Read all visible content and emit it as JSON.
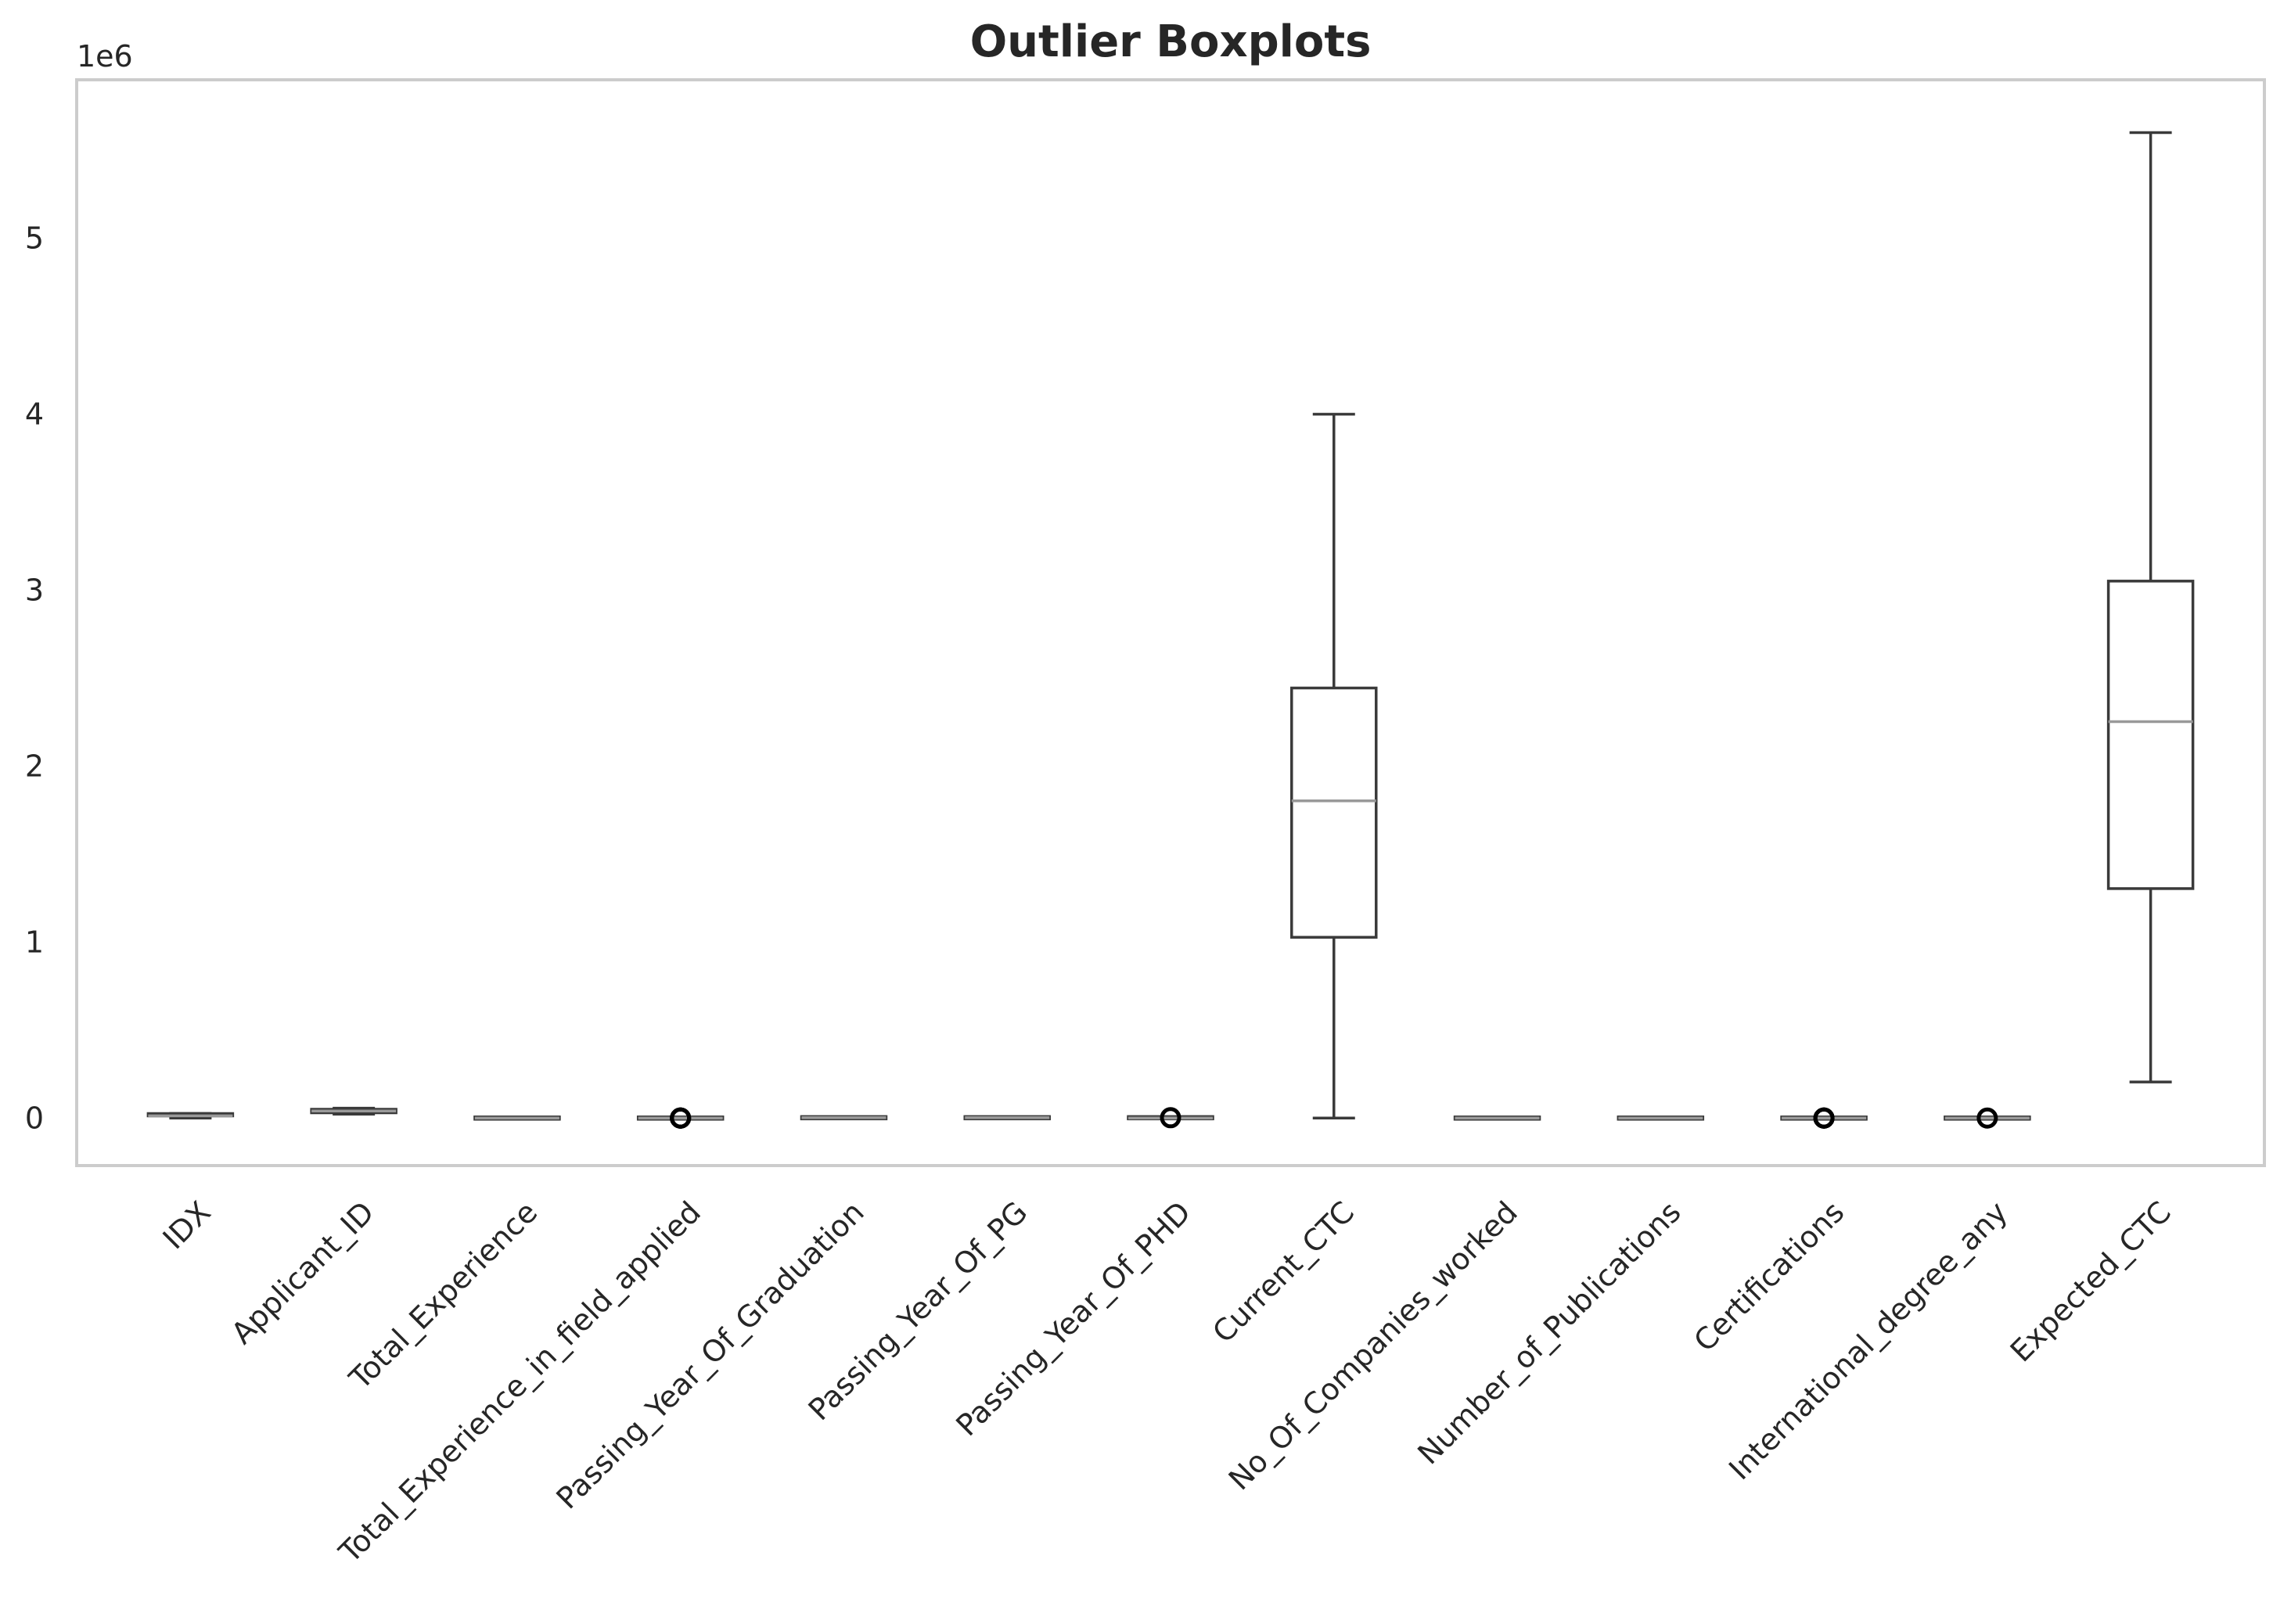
{
  "chart_data": {
    "type": "boxplot",
    "title": "Outlier Boxplots",
    "y_offset_label": "1e6",
    "ylim": [
      -270000,
      5900000
    ],
    "yticks": [
      0,
      1,
      2,
      3,
      4,
      5
    ],
    "grid": false,
    "categories": [
      "IDX",
      "Applicant_ID",
      "Total_Experience",
      "Total_Experience_in_field_applied",
      "Passing_Year_Of_Graduation",
      "Passing_Year_Of_PG",
      "Passing_Year_Of_PHD",
      "Current_CTC",
      "No_Of_Companies_worked",
      "Number_of_Publications",
      "Certifications",
      "International_degree_any",
      "Expected_CTC"
    ],
    "boxes": [
      {
        "min": 0,
        "q1": 6000,
        "median": 13000,
        "q3": 19000,
        "max": 26000,
        "outliers": []
      },
      {
        "min": 22000,
        "q1": 30000,
        "median": 40000,
        "q3": 50000,
        "max": 56000,
        "outliers": []
      },
      {
        "min": 0,
        "q1": 4,
        "median": 9,
        "q3": 15,
        "max": 25,
        "outliers": []
      },
      {
        "min": 0,
        "q1": 1,
        "median": 3,
        "q3": 8,
        "max": 18,
        "outliers": [
          20,
          21,
          22,
          23,
          24,
          25
        ]
      },
      {
        "min": 1986,
        "q1": 2002,
        "median": 2007,
        "q3": 2012,
        "max": 2020,
        "outliers": []
      },
      {
        "min": 1988,
        "q1": 2004,
        "median": 2009,
        "q3": 2014,
        "max": 2023,
        "outliers": []
      },
      {
        "min": 0,
        "q1": 0,
        "median": 0,
        "q3": 2010,
        "max": 2023,
        "outliers": [
          2000
        ]
      },
      {
        "min": 0,
        "q1": 1027311,
        "median": 1802568,
        "q3": 2443883,
        "max": 3999693,
        "outliers": []
      },
      {
        "min": 0,
        "q1": 1,
        "median": 3,
        "q3": 5,
        "max": 8,
        "outliers": []
      },
      {
        "min": 0,
        "q1": 1,
        "median": 4,
        "q3": 6,
        "max": 8,
        "outliers": []
      },
      {
        "min": 0,
        "q1": 0,
        "median": 0,
        "q3": 0,
        "max": 0,
        "outliers": [
          1,
          2,
          3,
          4,
          5
        ]
      },
      {
        "min": 0,
        "q1": 0,
        "median": 0,
        "q3": 0,
        "max": 0,
        "outliers": [
          1
        ]
      },
      {
        "min": 205003,
        "q1": 1304000,
        "median": 2252629,
        "q3": 3051354,
        "max": 5599999,
        "outliers": []
      }
    ]
  }
}
